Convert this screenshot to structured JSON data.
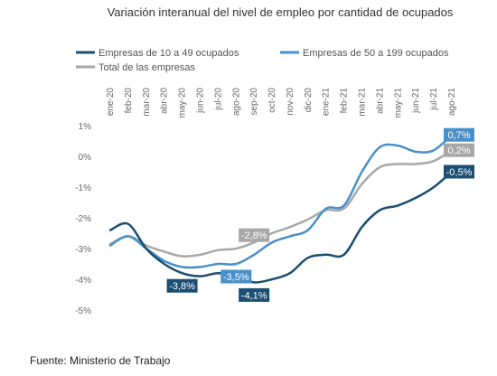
{
  "chart_data": {
    "type": "line",
    "title": "Variación interanual del nivel de empleo por cantidad de ocupados",
    "source": "Fuente: Ministerio de Trabajo",
    "categories": [
      "ene-20",
      "feb-20",
      "mar-20",
      "abr-20",
      "may-20",
      "jun-20",
      "jul-20",
      "ago-20",
      "sep-20",
      "oct-20",
      "nov-20",
      "dic-20",
      "ene-21",
      "feb-21",
      "mar-21",
      "abr-21",
      "may-21",
      "jun-21",
      "jul-21",
      "ago-21"
    ],
    "ylim": [
      -5,
      1
    ],
    "yticks": [
      1,
      0,
      -1,
      -2,
      -3,
      -4,
      -5
    ],
    "ytick_labels": [
      "1%",
      "0%",
      "-1%",
      "-2%",
      "-3%",
      "-4%",
      "-5%"
    ],
    "grid": false,
    "legend_position": "top",
    "series": [
      {
        "name": "Empresas de 10 a 49 ocupados",
        "color": "#1a4e72",
        "values": [
          -2.4,
          -2.2,
          -3.0,
          -3.5,
          -3.8,
          -3.9,
          -3.8,
          -3.9,
          -4.1,
          -4.0,
          -3.8,
          -3.3,
          -3.2,
          -3.2,
          -2.3,
          -1.75,
          -1.6,
          -1.35,
          -1.0,
          -0.5
        ],
        "labels": [
          {
            "index": 4,
            "text": "-3,8%",
            "position": "below"
          },
          {
            "index": 8,
            "text": "-4,1%",
            "position": "below"
          },
          {
            "index": 19,
            "text": "-0,5%",
            "position": "right"
          }
        ]
      },
      {
        "name": "Empresas de 50 a 199 ocupados",
        "color": "#4a90c8",
        "values": [
          -2.9,
          -2.6,
          -3.0,
          -3.4,
          -3.6,
          -3.6,
          -3.5,
          -3.5,
          -3.2,
          -2.8,
          -2.6,
          -2.4,
          -1.7,
          -1.6,
          -0.5,
          0.3,
          0.35,
          0.15,
          0.2,
          0.7
        ],
        "labels": [
          {
            "index": 7,
            "text": "-3,5%",
            "position": "below"
          },
          {
            "index": 19,
            "text": "0,7%",
            "position": "right"
          }
        ]
      },
      {
        "name": "Total de las empresas",
        "color": "#a8a8a8",
        "values": [
          -2.85,
          -2.6,
          -2.9,
          -3.1,
          -3.25,
          -3.2,
          -3.05,
          -3.0,
          -2.8,
          -2.5,
          -2.3,
          -2.05,
          -1.75,
          -1.7,
          -0.9,
          -0.35,
          -0.25,
          -0.25,
          -0.15,
          0.2
        ],
        "labels": [
          {
            "index": 8,
            "text": "-2,8%",
            "position": "above"
          },
          {
            "index": 19,
            "text": "0,2%",
            "position": "right"
          }
        ]
      }
    ]
  }
}
